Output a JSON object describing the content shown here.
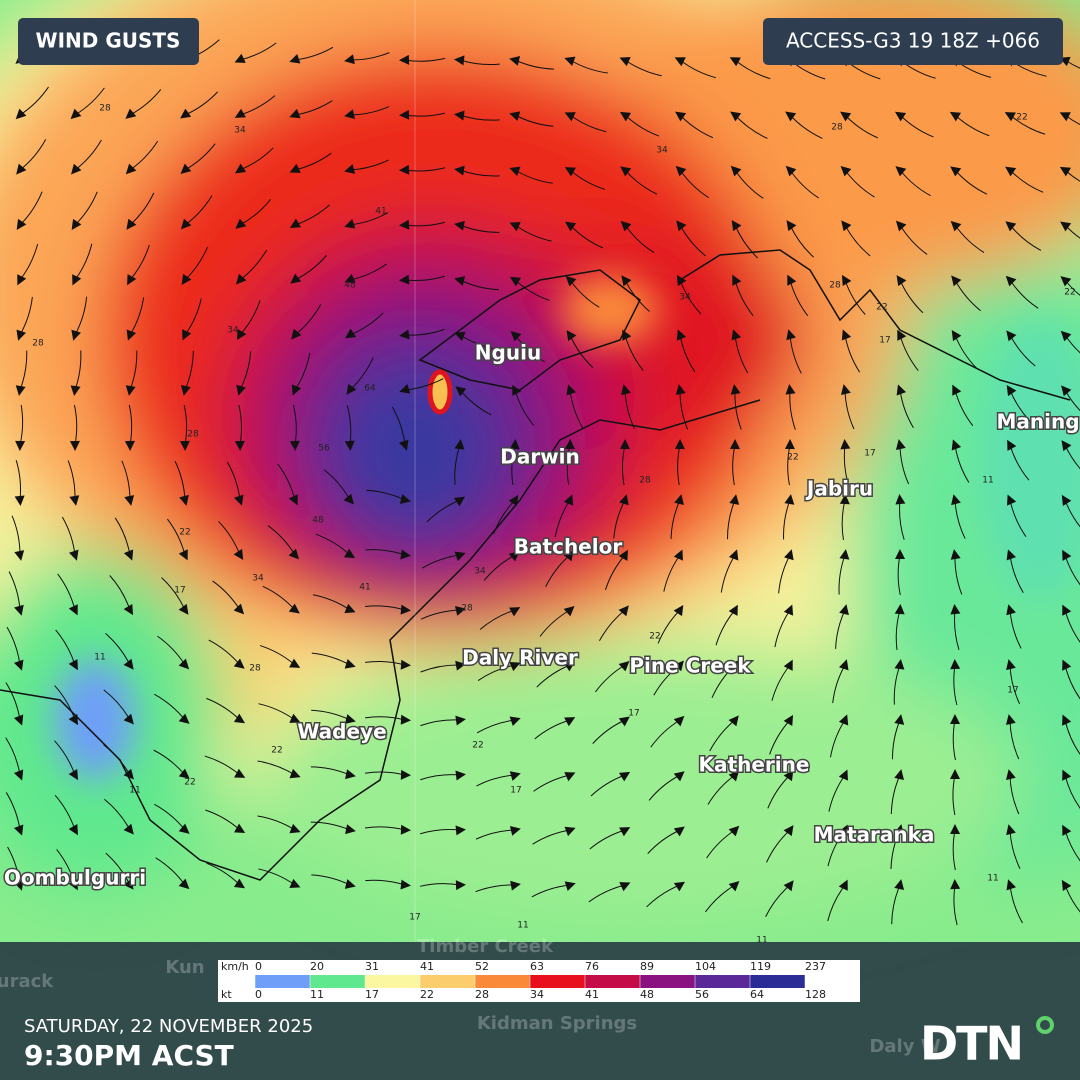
{
  "header": {
    "title": "WIND GUSTS",
    "model": "ACCESS-G3 19 18Z +066"
  },
  "places": [
    "Nguiu",
    "Darwin",
    "Jabiru",
    "Batchelor",
    "Daly River",
    "Pine Creek",
    "Wadeye",
    "Katherine",
    "Mataranka",
    "Oombulgurri",
    "Maning"
  ],
  "faded_places": [
    "Timber Creek",
    "Kun",
    "urack",
    "Kidman Springs",
    "Daly W"
  ],
  "contour_labels": [
    28,
    34,
    34,
    28,
    22,
    41,
    48,
    34,
    28,
    28,
    64,
    56,
    48,
    41,
    34,
    22,
    17,
    11,
    28,
    22,
    22,
    11,
    22,
    17,
    17,
    22,
    28,
    34,
    28,
    22,
    17,
    11,
    17,
    11,
    17,
    11,
    11,
    34,
    28,
    22,
    17,
    22
  ],
  "legend": {
    "units": [
      "km/h",
      "kt"
    ],
    "kmh": [
      0,
      20,
      31,
      41,
      52,
      63,
      76,
      89,
      104,
      119,
      237
    ],
    "kt": [
      0,
      11,
      17,
      22,
      28,
      34,
      41,
      48,
      56,
      64,
      128
    ],
    "colors": [
      "#6e9ef8",
      "#5fe88e",
      "#fbf7a0",
      "#fccd6c",
      "#fa8a3a",
      "#e8101c",
      "#c40c48",
      "#8a1280",
      "#5a2898",
      "#2c2c96"
    ]
  },
  "footer": {
    "date": "SATURDAY, 22 NOVEMBER 2025",
    "time": "9:30PM ACST",
    "logo": "DTN"
  }
}
